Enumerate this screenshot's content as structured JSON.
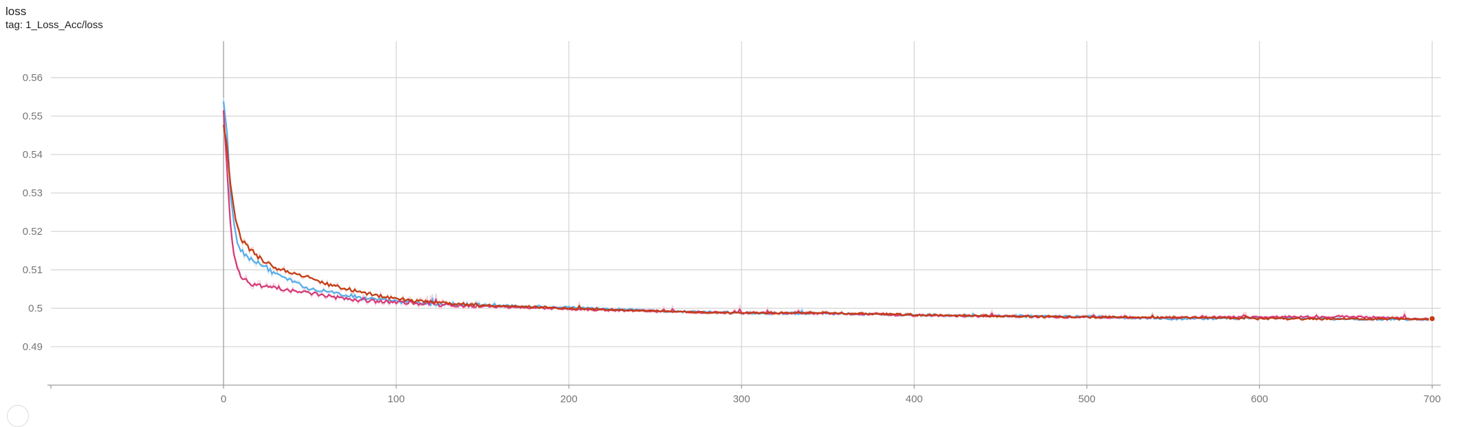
{
  "card": {
    "title": "loss",
    "subtitle": "tag: 1_Loss_Acc/loss"
  },
  "chart_data": {
    "type": "line",
    "title": "loss",
    "subtitle": "tag: 1_Loss_Acc/loss",
    "xlim": [
      -100,
      705
    ],
    "ylim": [
      0.48,
      0.5695
    ],
    "x_ticks": [
      0,
      100,
      200,
      300,
      400,
      500,
      600,
      700
    ],
    "y_ticks": [
      0.49,
      0.5,
      0.51,
      0.52,
      0.53,
      0.54,
      0.55,
      0.56
    ],
    "y_tick_labels": [
      "0.49",
      "0.5",
      "0.51",
      "0.52",
      "0.53",
      "0.54",
      "0.55",
      "0.56"
    ],
    "grid": true,
    "legend": "none",
    "series": [
      {
        "color": "#5aaee8",
        "raw_color": "#c6e2f6",
        "points": [
          [
            0,
            0.553
          ],
          [
            2,
            0.546
          ],
          [
            4,
            0.53
          ],
          [
            6,
            0.522
          ],
          [
            8,
            0.517
          ],
          [
            10,
            0.515
          ],
          [
            15,
            0.513
          ],
          [
            20,
            0.512
          ],
          [
            25,
            0.5105
          ],
          [
            30,
            0.509
          ],
          [
            40,
            0.507
          ],
          [
            50,
            0.505
          ],
          [
            60,
            0.5045
          ],
          [
            70,
            0.5035
          ],
          [
            80,
            0.5028
          ],
          [
            90,
            0.5022
          ],
          [
            100,
            0.5018
          ],
          [
            120,
            0.5012
          ],
          [
            150,
            0.5008
          ],
          [
            200,
            0.5002
          ],
          [
            250,
            0.4993
          ],
          [
            300,
            0.4988
          ],
          [
            350,
            0.4986
          ],
          [
            400,
            0.4983
          ],
          [
            450,
            0.498
          ],
          [
            500,
            0.4978
          ],
          [
            550,
            0.4972
          ],
          [
            600,
            0.4975
          ],
          [
            650,
            0.4972
          ],
          [
            700,
            0.4971
          ]
        ]
      },
      {
        "color": "#d63b78",
        "raw_color": "#f7c3d6",
        "points": [
          [
            0,
            0.551
          ],
          [
            2,
            0.536
          ],
          [
            4,
            0.522
          ],
          [
            6,
            0.514
          ],
          [
            8,
            0.51
          ],
          [
            10,
            0.508
          ],
          [
            15,
            0.5065
          ],
          [
            20,
            0.5058
          ],
          [
            30,
            0.5052
          ],
          [
            40,
            0.5045
          ],
          [
            50,
            0.504
          ],
          [
            60,
            0.5032
          ],
          [
            70,
            0.5025
          ],
          [
            80,
            0.502
          ],
          [
            100,
            0.5016
          ],
          [
            120,
            0.501
          ],
          [
            150,
            0.5005
          ],
          [
            200,
            0.4998
          ],
          [
            250,
            0.4992
          ],
          [
            300,
            0.4988
          ],
          [
            350,
            0.4987
          ],
          [
            400,
            0.4982
          ],
          [
            450,
            0.4979
          ],
          [
            500,
            0.4977
          ],
          [
            550,
            0.4976
          ],
          [
            600,
            0.4977
          ],
          [
            650,
            0.4978
          ],
          [
            700,
            0.4972
          ]
        ]
      },
      {
        "color": "#c43b13",
        "raw_color": "#f0c6b6",
        "points": [
          [
            0,
            0.548
          ],
          [
            2,
            0.542
          ],
          [
            4,
            0.532
          ],
          [
            6,
            0.526
          ],
          [
            8,
            0.521
          ],
          [
            10,
            0.518
          ],
          [
            15,
            0.5155
          ],
          [
            20,
            0.5135
          ],
          [
            25,
            0.512
          ],
          [
            30,
            0.5105
          ],
          [
            40,
            0.5092
          ],
          [
            50,
            0.508
          ],
          [
            60,
            0.5062
          ],
          [
            70,
            0.5052
          ],
          [
            80,
            0.5042
          ],
          [
            90,
            0.5032
          ],
          [
            100,
            0.5025
          ],
          [
            120,
            0.5015
          ],
          [
            150,
            0.5008
          ],
          [
            200,
            0.5
          ],
          [
            250,
            0.4993
          ],
          [
            300,
            0.4988
          ],
          [
            350,
            0.4988
          ],
          [
            400,
            0.4983
          ],
          [
            450,
            0.498
          ],
          [
            500,
            0.4977
          ],
          [
            550,
            0.4976
          ],
          [
            600,
            0.4973
          ],
          [
            650,
            0.4972
          ],
          [
            700,
            0.4973
          ]
        ]
      }
    ]
  }
}
